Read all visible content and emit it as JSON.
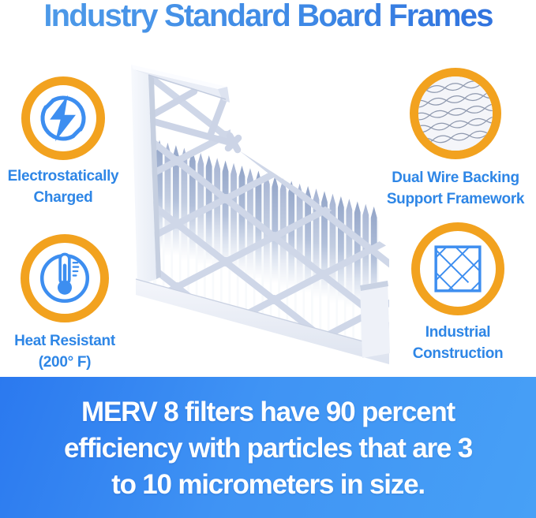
{
  "title": "Industry Standard Board Frames",
  "features": {
    "electrostatic": {
      "icon": "lightning-bolt-icon",
      "lines": [
        "Electrostatically",
        "Charged"
      ]
    },
    "wire_backing": {
      "icon": "wire-mesh-icon",
      "lines": [
        "Dual Wire Backing",
        "Support Framework"
      ]
    },
    "heat": {
      "icon": "thermometer-icon",
      "lines": [
        "Heat Resistant",
        "(200° F)"
      ]
    },
    "industrial": {
      "icon": "lattice-grid-icon",
      "lines": [
        "Industrial",
        "Construction"
      ]
    }
  },
  "product": {
    "description": "Pleated air filter with white board frame, corner cutaway view"
  },
  "banner": {
    "lines": [
      "MERV 8 filters have 90 percent",
      "efficiency with particles that are 3",
      "to 10 micrometers in size."
    ]
  },
  "colors": {
    "title_blue_start": "#4F9CE9",
    "title_blue_end": "#2D6EDD",
    "label_blue": "#2E86E6",
    "icon_blue": "#3D8EF0",
    "ring_orange": "#F2A21F",
    "banner_blue_start": "#2B79EF",
    "banner_blue_end": "#47A0F6",
    "banner_text": "#FFFFFF",
    "pleat_blue_gray": "#A9B7D3",
    "frame_white": "#EEF1F8"
  }
}
